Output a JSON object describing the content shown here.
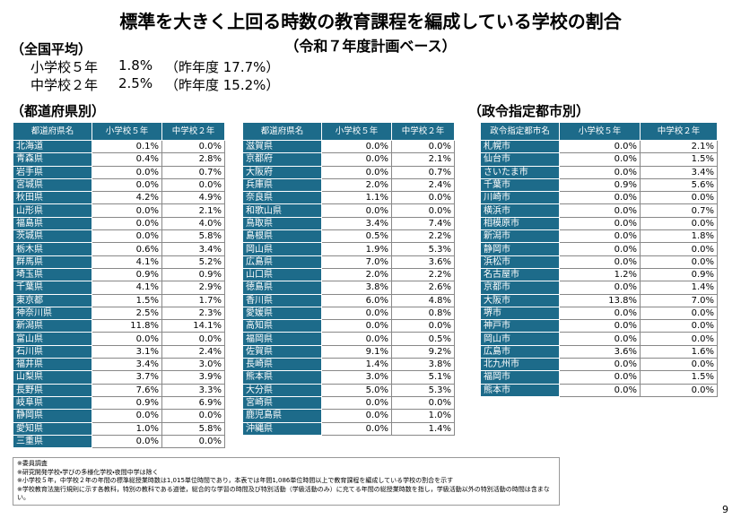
{
  "header": {
    "title": "標準を大きく上回る時数の教育課程を編成している学校の割合",
    "subtitle": "（令和７年度計画ベース）"
  },
  "summary": {
    "label": "（全国平均）",
    "rows": [
      [
        "小学校５年",
        "1.8%",
        "（昨年度 17.7%）"
      ],
      [
        "中学校２年",
        "2.5%",
        "（昨年度 15.2%）"
      ]
    ]
  },
  "sections": {
    "prefectures": "（都道府県別）",
    "cities": "（政令指定都市別）"
  },
  "tables": [
    {
      "header": [
        "都道府県名",
        "小学校５年",
        "中学校２年"
      ],
      "rows": [
        [
          "北海道",
          "0.1%",
          "0.0%"
        ],
        [
          "青森県",
          "0.4%",
          "2.8%"
        ],
        [
          "岩手県",
          "0.0%",
          "0.7%"
        ],
        [
          "宮城県",
          "0.0%",
          "0.0%"
        ],
        [
          "秋田県",
          "4.2%",
          "4.9%"
        ],
        [
          "山形県",
          "0.0%",
          "2.1%"
        ],
        [
          "福島県",
          "0.0%",
          "4.0%"
        ],
        [
          "茨城県",
          "0.0%",
          "5.8%"
        ],
        [
          "栃木県",
          "0.6%",
          "3.4%"
        ],
        [
          "群馬県",
          "4.1%",
          "5.2%"
        ],
        [
          "埼玉県",
          "0.9%",
          "0.9%"
        ],
        [
          "千葉県",
          "4.1%",
          "2.9%"
        ],
        [
          "東京都",
          "1.5%",
          "1.7%"
        ],
        [
          "神奈川県",
          "2.5%",
          "2.3%"
        ],
        [
          "新潟県",
          "11.8%",
          "14.1%"
        ],
        [
          "富山県",
          "0.0%",
          "0.0%"
        ],
        [
          "石川県",
          "3.1%",
          "2.4%"
        ],
        [
          "福井県",
          "3.4%",
          "3.0%"
        ],
        [
          "山梨県",
          "3.7%",
          "3.9%"
        ],
        [
          "長野県",
          "7.6%",
          "3.3%"
        ],
        [
          "岐阜県",
          "0.9%",
          "6.9%"
        ],
        [
          "静岡県",
          "0.0%",
          "0.0%"
        ],
        [
          "愛知県",
          "1.0%",
          "5.8%"
        ],
        [
          "三重県",
          "0.0%",
          "0.0%"
        ]
      ]
    },
    {
      "header": [
        "都道府県名",
        "小学校５年",
        "中学校２年"
      ],
      "rows": [
        [
          "滋賀県",
          "0.0%",
          "0.0%"
        ],
        [
          "京都府",
          "0.0%",
          "2.1%"
        ],
        [
          "大阪府",
          "0.0%",
          "0.7%"
        ],
        [
          "兵庫県",
          "2.0%",
          "2.4%"
        ],
        [
          "奈良県",
          "1.1%",
          "0.0%"
        ],
        [
          "和歌山県",
          "0.0%",
          "0.0%"
        ],
        [
          "鳥取県",
          "3.4%",
          "7.4%"
        ],
        [
          "島根県",
          "0.5%",
          "2.2%"
        ],
        [
          "岡山県",
          "1.9%",
          "5.3%"
        ],
        [
          "広島県",
          "7.0%",
          "3.6%"
        ],
        [
          "山口県",
          "2.0%",
          "2.2%"
        ],
        [
          "徳島県",
          "3.8%",
          "2.6%"
        ],
        [
          "香川県",
          "6.0%",
          "4.8%"
        ],
        [
          "愛媛県",
          "0.0%",
          "0.8%"
        ],
        [
          "高知県",
          "0.0%",
          "0.0%"
        ],
        [
          "福岡県",
          "0.0%",
          "0.5%"
        ],
        [
          "佐賀県",
          "9.1%",
          "9.2%"
        ],
        [
          "長崎県",
          "1.4%",
          "3.8%"
        ],
        [
          "熊本県",
          "3.0%",
          "5.1%"
        ],
        [
          "大分県",
          "5.0%",
          "5.3%"
        ],
        [
          "宮崎県",
          "0.0%",
          "0.0%"
        ],
        [
          "鹿児島県",
          "0.0%",
          "1.0%"
        ],
        [
          "沖縄県",
          "0.0%",
          "1.4%"
        ]
      ]
    },
    {
      "header": [
        "政令指定都市名",
        "小学校５年",
        "中学校２年"
      ],
      "rows": [
        [
          "札幌市",
          "0.0%",
          "2.1%"
        ],
        [
          "仙台市",
          "0.0%",
          "1.5%"
        ],
        [
          "さいたま市",
          "0.0%",
          "3.4%"
        ],
        [
          "千葉市",
          "0.9%",
          "5.6%"
        ],
        [
          "川崎市",
          "0.0%",
          "0.0%"
        ],
        [
          "横浜市",
          "0.0%",
          "0.7%"
        ],
        [
          "相模原市",
          "0.0%",
          "0.0%"
        ],
        [
          "新潟市",
          "0.0%",
          "1.8%"
        ],
        [
          "静岡市",
          "0.0%",
          "0.0%"
        ],
        [
          "浜松市",
          "0.0%",
          "0.0%"
        ],
        [
          "名古屋市",
          "1.2%",
          "0.9%"
        ],
        [
          "京都市",
          "0.0%",
          "1.4%"
        ],
        [
          "大阪市",
          "13.8%",
          "7.0%"
        ],
        [
          "堺市",
          "0.0%",
          "0.0%"
        ],
        [
          "神戸市",
          "0.0%",
          "0.0%"
        ],
        [
          "岡山市",
          "0.0%",
          "0.0%"
        ],
        [
          "広島市",
          "3.6%",
          "1.6%"
        ],
        [
          "北九州市",
          "0.0%",
          "0.0%"
        ],
        [
          "福岡市",
          "0.0%",
          "1.5%"
        ],
        [
          "熊本市",
          "0.0%",
          "0.0%"
        ]
      ]
    }
  ],
  "notes": [
    "※委員調査",
    "※研究開発学校・学びの多様化学校・夜間中学は除く",
    "※小学校５年，中学校２年の年間の標準総授業時数は1,015単位時間であり，本表では年間1,086単位時間以上で教育課程を編成している学校の割合を示す",
    "※学校教育法施行規則に示す各教科，特別の教科である道徳，総合的な学習の時間及び特別活動（学級活動のみ）に充てる年間の総授業時数を指し，学級活動以外の特別活動の時間は含まない。"
  ],
  "page_number": "9"
}
